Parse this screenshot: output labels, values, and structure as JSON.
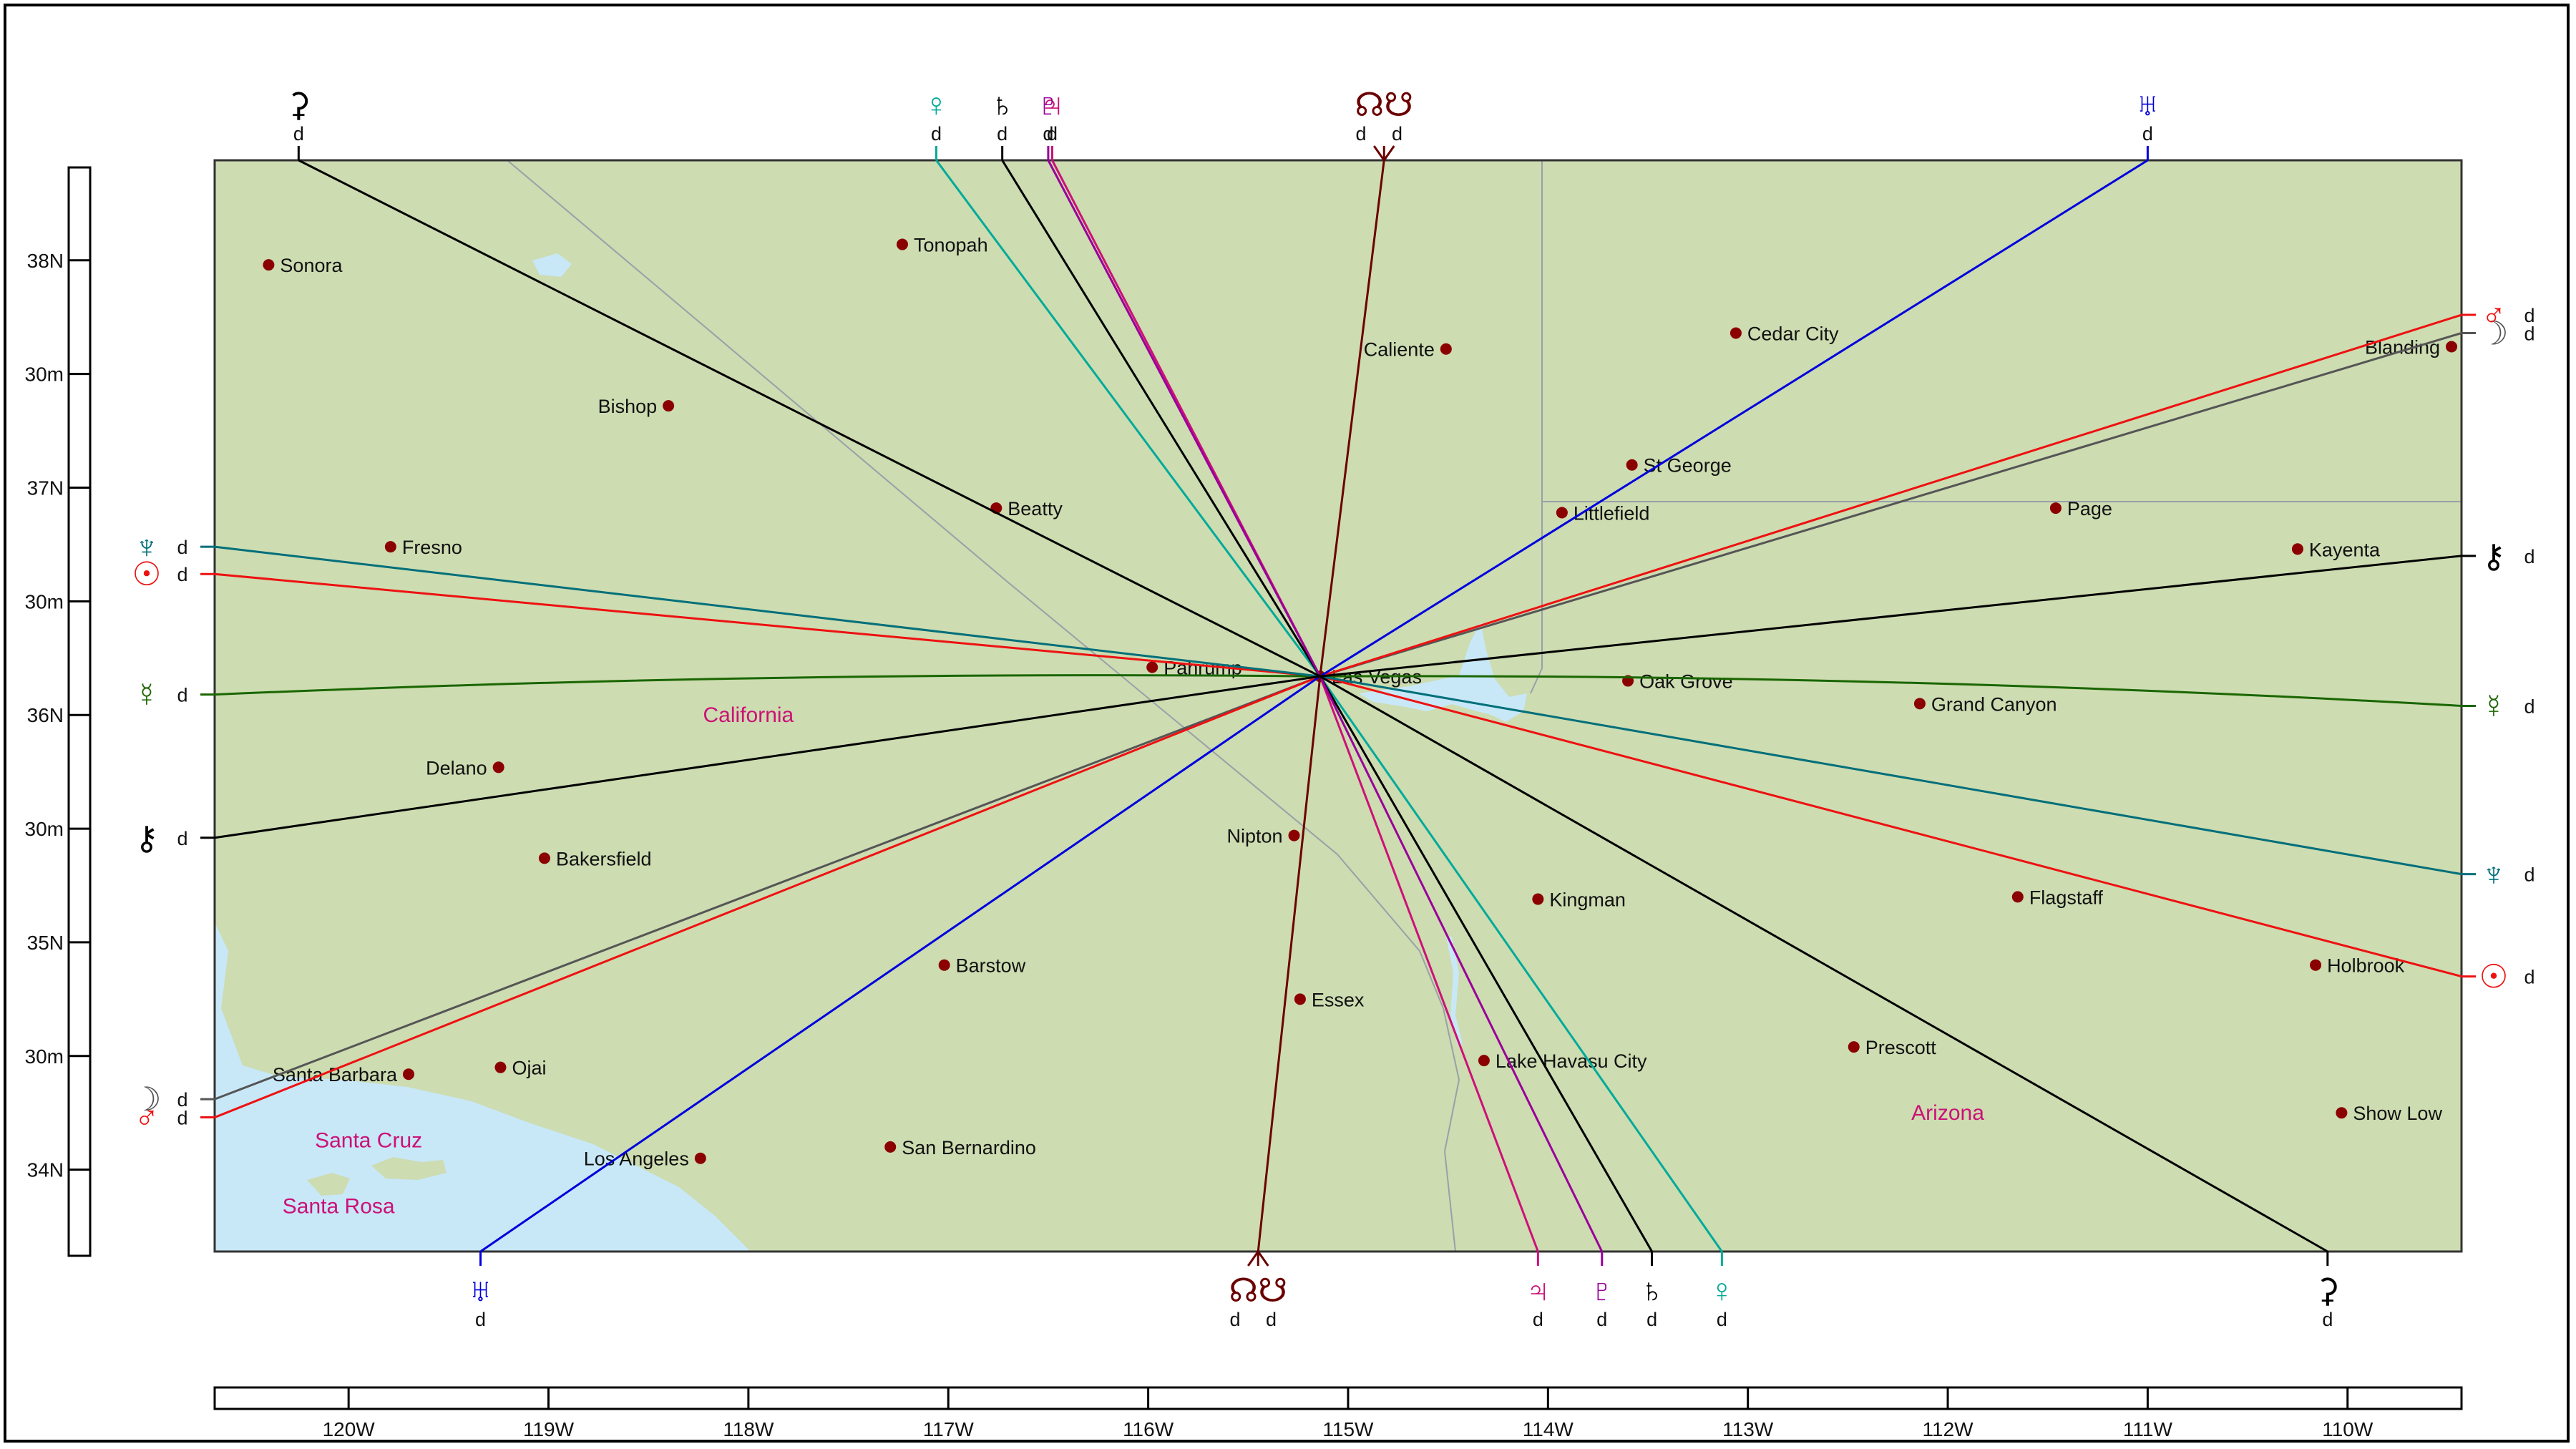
{
  "colors": {
    "land": "#cddcb1",
    "water": "#c8e8f8",
    "city_dot": "#8b0000",
    "region_label": "#cc1177",
    "border": "#9aa0a8"
  },
  "lat_ticks": [
    "38N",
    "30m",
    "37N",
    "30m",
    "36N",
    "30m",
    "35N",
    "30m",
    "34N"
  ],
  "lon_ticks": [
    "120W",
    "119W",
    "118W",
    "117W",
    "116W",
    "115W",
    "114W",
    "113W",
    "112W",
    "111W",
    "110W"
  ],
  "regions": [
    {
      "name": "California",
      "lon": -118.0,
      "lat": 36.0
    },
    {
      "name": "Arizona",
      "lon": -112.0,
      "lat": 34.25
    },
    {
      "name": "Santa Cruz",
      "lon": -119.9,
      "lat": 34.13
    },
    {
      "name": "Santa Rosa",
      "lon": -120.05,
      "lat": 33.84
    }
  ],
  "cities": [
    {
      "name": "Sonora",
      "lon": -120.4,
      "lat": 37.98,
      "side": "right"
    },
    {
      "name": "Tonopah",
      "lon": -117.23,
      "lat": 38.07,
      "side": "right"
    },
    {
      "name": "Caliente",
      "lon": -114.51,
      "lat": 37.61,
      "side": "left"
    },
    {
      "name": "Cedar City",
      "lon": -113.06,
      "lat": 37.68,
      "side": "right"
    },
    {
      "name": "Blanding",
      "lon": -109.48,
      "lat": 37.62,
      "side": "left"
    },
    {
      "name": "Bishop",
      "lon": -118.4,
      "lat": 37.36,
      "side": "left"
    },
    {
      "name": "St George",
      "lon": -113.58,
      "lat": 37.1,
      "side": "right"
    },
    {
      "name": "Beatty",
      "lon": -116.76,
      "lat": 36.91,
      "side": "right"
    },
    {
      "name": "Littlefield",
      "lon": -113.93,
      "lat": 36.89,
      "side": "right"
    },
    {
      "name": "Page",
      "lon": -111.46,
      "lat": 36.91,
      "side": "right"
    },
    {
      "name": "Fresno",
      "lon": -119.79,
      "lat": 36.74,
      "side": "right"
    },
    {
      "name": "Kayenta",
      "lon": -110.25,
      "lat": 36.73,
      "side": "right"
    },
    {
      "name": "Pahrump",
      "lon": -115.98,
      "lat": 36.21,
      "side": "right"
    },
    {
      "name": "Las Vegas",
      "lon": -115.14,
      "lat": 36.17,
      "side": "right"
    },
    {
      "name": "Oak Grove",
      "lon": -113.6,
      "lat": 36.15,
      "side": "right"
    },
    {
      "name": "Grand Canyon",
      "lon": -112.14,
      "lat": 36.05,
      "side": "right"
    },
    {
      "name": "Delano",
      "lon": -119.25,
      "lat": 35.77,
      "side": "left"
    },
    {
      "name": "Bakersfield",
      "lon": -119.02,
      "lat": 35.37,
      "side": "right"
    },
    {
      "name": "Nipton",
      "lon": -115.27,
      "lat": 35.47,
      "side": "left"
    },
    {
      "name": "Kingman",
      "lon": -114.05,
      "lat": 35.19,
      "side": "right"
    },
    {
      "name": "Flagstaff",
      "lon": -111.65,
      "lat": 35.2,
      "side": "right"
    },
    {
      "name": "Barstow",
      "lon": -117.02,
      "lat": 34.9,
      "side": "right"
    },
    {
      "name": "Holbrook",
      "lon": -110.16,
      "lat": 34.9,
      "side": "right"
    },
    {
      "name": "Essex",
      "lon": -115.24,
      "lat": 34.75,
      "side": "right"
    },
    {
      "name": "Prescott",
      "lon": -112.47,
      "lat": 34.54,
      "side": "right"
    },
    {
      "name": "Santa Barbara",
      "lon": -119.7,
      "lat": 34.42,
      "side": "left"
    },
    {
      "name": "Ojai",
      "lon": -119.24,
      "lat": 34.45,
      "side": "right"
    },
    {
      "name": "Lake Havasu City",
      "lon": -114.32,
      "lat": 34.48,
      "side": "right"
    },
    {
      "name": "Show Low",
      "lon": -110.03,
      "lat": 34.25,
      "side": "right"
    },
    {
      "name": "San Bernardino",
      "lon": -117.29,
      "lat": 34.1,
      "side": "right"
    },
    {
      "name": "Los Angeles",
      "lon": -118.24,
      "lat": 34.05,
      "side": "left"
    }
  ],
  "center": {
    "lon": -115.14,
    "lat": 36.17
  },
  "lines": [
    {
      "id": "sun",
      "color": "#ee1111",
      "glyph": "☉",
      "end_a": {
        "edge": "left",
        "lat": 36.62
      },
      "end_b": {
        "edge": "right",
        "lat": 34.85
      },
      "tag_a": "d",
      "tag_b": "d"
    },
    {
      "id": "moon",
      "color": "#555555",
      "glyph": "☽",
      "end_a": {
        "edge": "left",
        "lat": 34.31
      },
      "end_b": {
        "edge": "right",
        "lat": 37.68
      },
      "tag_a": "d",
      "tag_b": "d"
    },
    {
      "id": "mercury",
      "color": "#1a6600",
      "glyph": "☿",
      "end_a": {
        "edge": "left",
        "lat": 36.09
      },
      "end_b": {
        "edge": "right",
        "lat": 36.04
      },
      "tag_a": "d",
      "tag_b": "d"
    },
    {
      "id": "venus",
      "color": "#00aa99",
      "glyph": "♀",
      "end_a": {
        "edge": "top",
        "lon": -117.06
      },
      "end_b": {
        "edge": "bottom",
        "lon": -113.13
      },
      "tag_a": "d",
      "tag_b": "d"
    },
    {
      "id": "mars",
      "color": "#ee1111",
      "glyph": "♂",
      "end_a": {
        "edge": "left",
        "lat": 34.23
      },
      "end_b": {
        "edge": "right",
        "lat": 37.76
      },
      "tag_a": "d",
      "tag_b": "d"
    },
    {
      "id": "jupiter",
      "color": "#cc1177",
      "glyph": "♃",
      "end_a": {
        "edge": "top",
        "lon": -116.48
      },
      "end_b": {
        "edge": "bottom",
        "lon": -114.05
      },
      "tag_a": "d",
      "tag_b": "d"
    },
    {
      "id": "saturn",
      "color": "#000000",
      "glyph": "♄",
      "end_a": {
        "edge": "top",
        "lon": -116.73
      },
      "end_b": {
        "edge": "bottom",
        "lon": -113.48
      },
      "tag_a": "d",
      "tag_b": "d"
    },
    {
      "id": "uranus",
      "color": "#0000dd",
      "glyph": "♅",
      "end_a": {
        "edge": "top",
        "lon": -111.0
      },
      "end_b": {
        "edge": "bottom",
        "lon": -119.34
      },
      "tag_a": "d",
      "tag_b": "d"
    },
    {
      "id": "neptune",
      "color": "#006f7a",
      "glyph": "♆",
      "end_a": {
        "edge": "left",
        "lat": 36.74
      },
      "end_b": {
        "edge": "right",
        "lat": 35.3
      },
      "tag_a": "d",
      "tag_b": "d"
    },
    {
      "id": "pluto",
      "color": "#990099",
      "glyph": "♇",
      "end_a": {
        "edge": "top",
        "lon": -116.5
      },
      "end_b": {
        "edge": "bottom",
        "lon": -113.73
      },
      "tag_a": "d",
      "tag_b": "d"
    },
    {
      "id": "chiron",
      "color": "#000000",
      "glyph": "⚷",
      "end_a": {
        "edge": "left",
        "lat": 35.46
      },
      "end_b": {
        "edge": "right",
        "lat": 36.7
      },
      "tag_a": "d",
      "tag_b": "d"
    },
    {
      "id": "nodes",
      "color": "#6b0000",
      "glyph": "☊☋",
      "end_a": {
        "edge": "top",
        "lon": -114.82
      },
      "end_b": {
        "edge": "bottom",
        "lon": -115.45
      },
      "tag_a": "d d",
      "tag_b": "d d"
    },
    {
      "id": "ceres",
      "color": "#000000",
      "glyph": "⚳",
      "end_a": {
        "edge": "top",
        "lon": -120.25
      },
      "end_b": {
        "edge": "bottom",
        "lon": -110.1
      },
      "tag_a": "d",
      "tag_b": "d"
    }
  ]
}
